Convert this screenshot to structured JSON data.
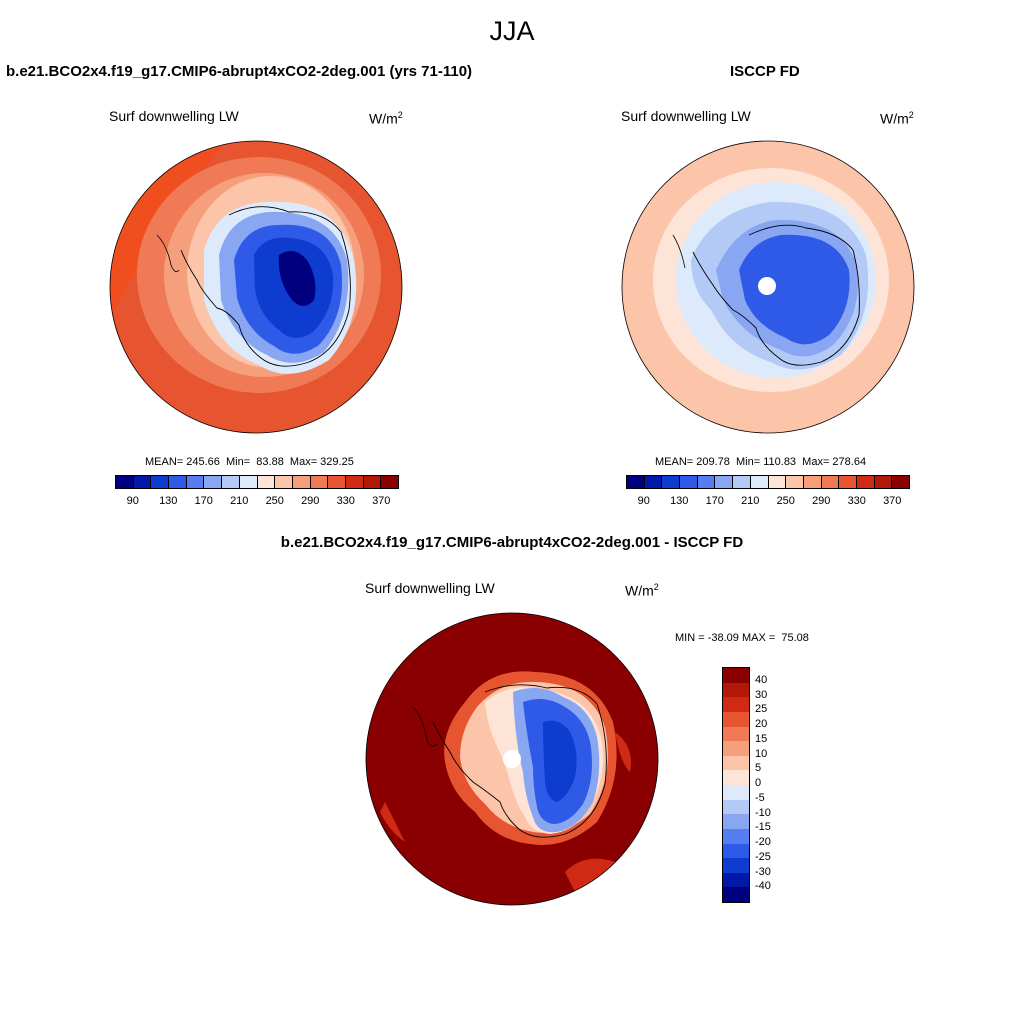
{
  "season": "JJA",
  "panels": [
    {
      "title": "b.e21.BCO2x4.f19_g17.CMIP6-abrupt4xCO2-2deg.001 (yrs 71-110)",
      "variable": "Surf downwelling LW",
      "units": "W/m",
      "units_exp": "2",
      "stats": "MEAN= 245.66  Min=  83.88  Max= 329.25"
    },
    {
      "title": "ISCCP FD",
      "variable": "Surf downwelling LW",
      "units": "W/m",
      "units_exp": "2",
      "stats": "MEAN= 209.78  Min= 110.83  Max= 278.64"
    },
    {
      "title": "b.e21.BCO2x4.f19_g17.CMIP6-abrupt4xCO2-2deg.001 - ISCCP FD",
      "variable": "Surf downwelling LW",
      "units": "W/m",
      "units_exp": "2",
      "stats": "MIN = -38.09 MAX =  75.08"
    }
  ],
  "chart_data": [
    {
      "type": "heatmap",
      "projection": "south-polar-stereographic",
      "title": "b.e21.BCO2x4.f19_g17.CMIP6-abrupt4xCO2-2deg.001 (yrs 71-110)",
      "field": "Surf downwelling LW",
      "units": "W/m2",
      "mean": 245.66,
      "min": 83.88,
      "max": 329.25,
      "colorbar_levels": [
        90,
        110,
        130,
        150,
        170,
        190,
        210,
        230,
        250,
        270,
        290,
        310,
        330,
        350,
        370
      ],
      "colorbar_labels": [
        "90",
        "130",
        "170",
        "210",
        "250",
        "290",
        "330",
        "370"
      ],
      "colorbar_colors": [
        "#00007f",
        "#0219a8",
        "#0d3ccf",
        "#2f5ae8",
        "#577ef0",
        "#88a6f2",
        "#b4caf6",
        "#ddeafb",
        "#fde4d6",
        "#fcc4a8",
        "#f69f7c",
        "#ef7a55",
        "#e75430",
        "#d12a14",
        "#b11807",
        "#8a0000"
      ]
    },
    {
      "type": "heatmap",
      "projection": "south-polar-stereographic",
      "title": "ISCCP FD",
      "field": "Surf downwelling LW",
      "units": "W/m2",
      "mean": 209.78,
      "min": 110.83,
      "max": 278.64,
      "colorbar_levels": [
        90,
        110,
        130,
        150,
        170,
        190,
        210,
        230,
        250,
        270,
        290,
        310,
        330,
        350,
        370
      ],
      "colorbar_labels": [
        "90",
        "130",
        "170",
        "210",
        "250",
        "290",
        "330",
        "370"
      ],
      "colorbar_colors": [
        "#00007f",
        "#0219a8",
        "#0d3ccf",
        "#2f5ae8",
        "#577ef0",
        "#88a6f2",
        "#b4caf6",
        "#ddeafb",
        "#fde4d6",
        "#fcc4a8",
        "#f69f7c",
        "#ef7a55",
        "#e75430",
        "#d12a14",
        "#b11807",
        "#8a0000"
      ]
    },
    {
      "type": "heatmap",
      "projection": "south-polar-stereographic",
      "title": "b.e21.BCO2x4.f19_g17.CMIP6-abrupt4xCO2-2deg.001 - ISCCP FD",
      "field": "Surf downwelling LW",
      "units": "W/m2",
      "min": -38.09,
      "max": 75.08,
      "colorbar_levels": [
        -40,
        -30,
        -25,
        -20,
        -15,
        -10,
        -5,
        0,
        5,
        10,
        15,
        20,
        25,
        30,
        40
      ],
      "colorbar_labels": [
        "40",
        "30",
        "25",
        "20",
        "15",
        "10",
        "5",
        "0",
        "-5",
        "-10",
        "-15",
        "-20",
        "-25",
        "-30",
        "-40"
      ],
      "colorbar_colors": [
        "#8a0000",
        "#b11807",
        "#d12a14",
        "#e75430",
        "#ef7a55",
        "#f69f7c",
        "#fcc4a8",
        "#fde4d6",
        "#ddeafb",
        "#b4caf6",
        "#88a6f2",
        "#577ef0",
        "#2f5ae8",
        "#0d3ccf",
        "#0219a8",
        "#00007f"
      ]
    }
  ]
}
